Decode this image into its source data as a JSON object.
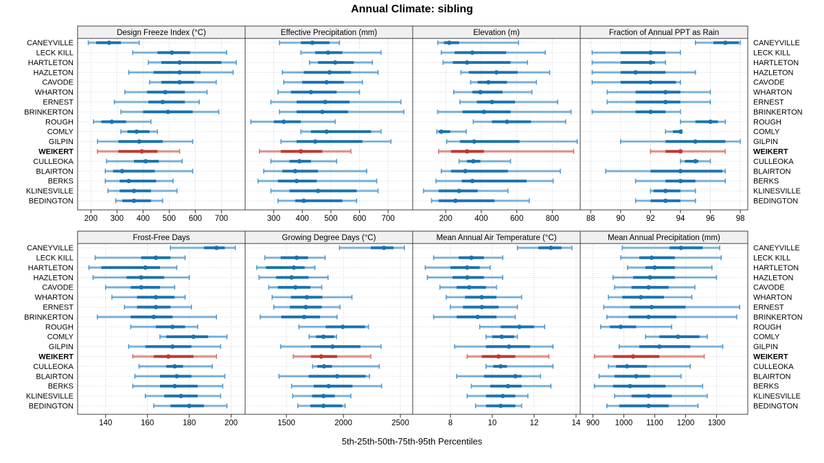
{
  "title": "Annual Climate: sibling",
  "caption": "5th-25th-50th-75th-95th Percentiles",
  "highlight_site": "WEIKERT",
  "colors": {
    "blue_dark": "#1b73af",
    "blue_mid": "#4d97cb",
    "blue_light": "#b7d4ea",
    "red_dark": "#c13830",
    "red_mid": "#d4756d",
    "red_light": "#eab4af",
    "strip_bg": "#f0f0f0",
    "panel_border": "#3c3c3c",
    "grid": "#cccccc",
    "row_grid": "#d4d4d4",
    "tick": "#333333"
  },
  "sites": [
    "CANEYVILLE",
    "LECK KILL",
    "HARTLETON",
    "HAZLETON",
    "CAVODE",
    "WHARTON",
    "ERNEST",
    "BRINKERTON",
    "ROUGH",
    "COMLY",
    "GILPIN",
    "WEIKERT",
    "CULLEOKA",
    "BLAIRTON",
    "BERKS",
    "KLINESVILLE",
    "BEDINGTON"
  ],
  "chart_data": {
    "type": "trellis-interval-dotplot",
    "percentile_levels": [
      5,
      25,
      50,
      75,
      95
    ],
    "note": "values arrays align with sites order; each entry = [p5,p25,p50,p75,p95]",
    "panels": [
      {
        "title": "Design Freeze Index (°C)",
        "grid_row": 0,
        "grid_col": 0,
        "xlim": [
          149,
          791
        ],
        "ticks": [
          200,
          300,
          400,
          500,
          600,
          700
        ],
        "values": [
          [
            190,
            220,
            270,
            315,
            385
          ],
          [
            360,
            455,
            510,
            580,
            720
          ],
          [
            420,
            470,
            540,
            700,
            757
          ],
          [
            345,
            440,
            540,
            620,
            745
          ],
          [
            425,
            470,
            540,
            595,
            680
          ],
          [
            330,
            415,
            485,
            560,
            645
          ],
          [
            290,
            420,
            475,
            560,
            615
          ],
          [
            315,
            400,
            495,
            590,
            690
          ],
          [
            210,
            240,
            280,
            335,
            430
          ],
          [
            315,
            340,
            375,
            425,
            455
          ],
          [
            225,
            305,
            385,
            475,
            590
          ],
          [
            225,
            305,
            395,
            455,
            540
          ],
          [
            260,
            365,
            410,
            460,
            550
          ],
          [
            255,
            285,
            320,
            445,
            590
          ],
          [
            255,
            310,
            345,
            450,
            515
          ],
          [
            265,
            310,
            365,
            430,
            530
          ],
          [
            295,
            320,
            365,
            430,
            475
          ]
        ]
      },
      {
        "title": "Effective Precipitation (mm)",
        "grid_row": 0,
        "grid_col": 1,
        "xlim": [
          200,
          786
        ],
        "ticks": [
          300,
          400,
          500,
          600,
          700
        ],
        "values": [
          [
            320,
            395,
            435,
            495,
            530
          ],
          [
            395,
            445,
            490,
            540,
            675
          ],
          [
            425,
            455,
            515,
            580,
            645
          ],
          [
            330,
            405,
            495,
            570,
            665
          ],
          [
            335,
            400,
            485,
            545,
            610
          ],
          [
            315,
            360,
            430,
            520,
            600
          ],
          [
            290,
            380,
            480,
            565,
            745
          ],
          [
            320,
            380,
            470,
            560,
            755
          ],
          [
            220,
            300,
            335,
            395,
            515
          ],
          [
            395,
            430,
            485,
            640,
            675
          ],
          [
            325,
            380,
            445,
            610,
            710
          ],
          [
            250,
            325,
            395,
            470,
            570
          ],
          [
            290,
            355,
            390,
            430,
            520
          ],
          [
            265,
            330,
            375,
            455,
            625
          ],
          [
            245,
            315,
            380,
            450,
            660
          ],
          [
            290,
            355,
            455,
            590,
            665
          ],
          [
            315,
            375,
            405,
            540,
            590
          ]
        ]
      },
      {
        "title": "Elevation (m)",
        "grid_row": 0,
        "grid_col": 2,
        "xlim": [
          14,
          957
        ],
        "ticks": [
          200,
          400,
          600,
          800
        ],
        "values": [
          [
            155,
            190,
            220,
            275,
            610
          ],
          [
            175,
            250,
            350,
            540,
            760
          ],
          [
            185,
            240,
            320,
            565,
            660
          ],
          [
            285,
            330,
            485,
            605,
            785
          ],
          [
            340,
            380,
            440,
            545,
            710
          ],
          [
            245,
            350,
            395,
            520,
            685
          ],
          [
            280,
            375,
            460,
            590,
            830
          ],
          [
            155,
            295,
            415,
            565,
            905
          ],
          [
            355,
            460,
            545,
            680,
            875
          ],
          [
            150,
            160,
            175,
            225,
            315
          ],
          [
            205,
            280,
            360,
            615,
            940
          ],
          [
            160,
            230,
            320,
            415,
            920
          ],
          [
            275,
            320,
            355,
            395,
            565
          ],
          [
            175,
            230,
            310,
            550,
            845
          ],
          [
            145,
            290,
            350,
            655,
            805
          ],
          [
            75,
            160,
            275,
            380,
            550
          ],
          [
            120,
            160,
            255,
            475,
            670
          ]
        ]
      },
      {
        "title": "Fraction of Annual PPT as Rain",
        "grid_row": 0,
        "grid_col": 3,
        "xlim": [
          87.3,
          98.5
        ],
        "ticks": [
          88,
          90,
          92,
          94,
          96,
          98
        ],
        "values": [
          [
            95.0,
            96.2,
            97.0,
            97.9,
            98.0
          ],
          [
            88.1,
            90.0,
            92.0,
            93.0,
            94.0
          ],
          [
            88.1,
            90.0,
            92.0,
            92.3,
            93.0
          ],
          [
            88.1,
            90.0,
            91.0,
            93.0,
            95.0
          ],
          [
            88.1,
            90.0,
            92.0,
            93.7,
            94.0
          ],
          [
            89.1,
            91.0,
            93.0,
            94.0,
            96.0
          ],
          [
            89.1,
            91.0,
            93.0,
            94.0,
            96.0
          ],
          [
            88.1,
            91.0,
            92.0,
            93.0,
            94.0
          ],
          [
            94.0,
            95.0,
            96.0,
            96.5,
            97.0
          ],
          [
            93.0,
            93.5,
            94.0,
            94.0,
            94.1
          ],
          [
            90.0,
            93.0,
            95.0,
            97.0,
            98.0
          ],
          [
            92.0,
            93.0,
            94.0,
            94.1,
            97.0
          ],
          [
            94.0,
            94.3,
            95.0,
            95.2,
            96.0
          ],
          [
            89.0,
            92.0,
            94.0,
            96.8,
            97.0
          ],
          [
            91.0,
            93.0,
            94.0,
            95.0,
            97.0
          ],
          [
            92.0,
            92.2,
            93.0,
            94.0,
            95.0
          ],
          [
            91.0,
            92.0,
            93.0,
            94.0,
            95.0
          ]
        ]
      },
      {
        "title": "Frost-Free Days",
        "grid_row": 1,
        "grid_col": 0,
        "xlim": [
          126.6,
          206.7
        ],
        "ticks": [
          140,
          160,
          180,
          200
        ],
        "values": [
          [
            171,
            187,
            193,
            197,
            202
          ],
          [
            135,
            157,
            164,
            171,
            178
          ],
          [
            132,
            138,
            159,
            166,
            174
          ],
          [
            134,
            150,
            157,
            168,
            180
          ],
          [
            140,
            152,
            157,
            166,
            173
          ],
          [
            143,
            155,
            164,
            173,
            178
          ],
          [
            149,
            155,
            164,
            171,
            181
          ],
          [
            136,
            152,
            163,
            172,
            193
          ],
          [
            152,
            164,
            172,
            178,
            184
          ],
          [
            166,
            169,
            182,
            189,
            198
          ],
          [
            151,
            159,
            172,
            181,
            195
          ],
          [
            153,
            163,
            170,
            182,
            193
          ],
          [
            156,
            169,
            173,
            177,
            191
          ],
          [
            154,
            166,
            174,
            181,
            197
          ],
          [
            153,
            166,
            173,
            184,
            196
          ],
          [
            159,
            168,
            176,
            184,
            195
          ],
          [
            163,
            171,
            180,
            187,
            198
          ]
        ]
      },
      {
        "title": "Growing Degree Days (°C)",
        "grid_row": 1,
        "grid_col": 1,
        "xlim": [
          1138,
          2608
        ],
        "ticks": [
          1500,
          2000,
          2500
        ],
        "values": [
          [
            1965,
            2240,
            2355,
            2440,
            2535
          ],
          [
            1310,
            1450,
            1590,
            1690,
            1840
          ],
          [
            1240,
            1320,
            1565,
            1660,
            1750
          ],
          [
            1260,
            1410,
            1545,
            1695,
            1865
          ],
          [
            1345,
            1425,
            1580,
            1710,
            1810
          ],
          [
            1375,
            1540,
            1680,
            1815,
            2075
          ],
          [
            1390,
            1530,
            1670,
            1810,
            1970
          ],
          [
            1270,
            1455,
            1655,
            1795,
            1945
          ],
          [
            1610,
            1845,
            1995,
            2190,
            2220
          ],
          [
            1700,
            1760,
            1825,
            1920,
            1940
          ],
          [
            1450,
            1715,
            1905,
            2150,
            2330
          ],
          [
            1560,
            1715,
            1805,
            1945,
            2240
          ],
          [
            1730,
            1770,
            1830,
            1900,
            2315
          ],
          [
            1435,
            1695,
            1945,
            2195,
            2230
          ],
          [
            1545,
            1740,
            1870,
            2080,
            2335
          ],
          [
            1555,
            1725,
            1825,
            1925,
            2065
          ],
          [
            1600,
            1710,
            1825,
            1990,
            2015
          ]
        ]
      },
      {
        "title": "Mean Annual Air Temperature (°C)",
        "grid_row": 1,
        "grid_col": 2,
        "xlim": [
          6.2,
          14.2
        ],
        "ticks": [
          8,
          10,
          12,
          14
        ],
        "values": [
          [
            11.2,
            12.2,
            12.8,
            13.3,
            13.8
          ],
          [
            7.2,
            8.4,
            9.0,
            9.6,
            10.5
          ],
          [
            6.8,
            8.0,
            8.8,
            9.4,
            9.9
          ],
          [
            6.9,
            8.1,
            8.8,
            9.6,
            10.5
          ],
          [
            7.5,
            8.3,
            8.9,
            9.7,
            10.2
          ],
          [
            7.8,
            8.7,
            9.5,
            10.2,
            11.4
          ],
          [
            8.0,
            8.6,
            9.5,
            10.3,
            11.2
          ],
          [
            7.2,
            8.3,
            9.3,
            10.2,
            11.1
          ],
          [
            9.4,
            10.4,
            11.3,
            12.0,
            12.5
          ],
          [
            9.7,
            10.0,
            10.45,
            11.05,
            11.2
          ],
          [
            8.2,
            9.7,
            10.8,
            11.8,
            12.9
          ],
          [
            8.8,
            9.5,
            10.3,
            11.1,
            12.7
          ],
          [
            9.7,
            10.05,
            10.4,
            10.7,
            12.9
          ],
          [
            8.3,
            9.6,
            11.1,
            11.4,
            12.3
          ],
          [
            9.0,
            9.9,
            10.75,
            11.4,
            12.8
          ],
          [
            8.8,
            9.7,
            10.5,
            11.1,
            11.7
          ],
          [
            9.2,
            9.7,
            10.4,
            11.1,
            11.4
          ]
        ]
      },
      {
        "title": "Mean Annual Precipitation (mm)",
        "grid_row": 1,
        "grid_col": 3,
        "xlim": [
          859,
          1401
        ],
        "ticks": [
          900,
          1000,
          1100,
          1200,
          1300
        ],
        "values": [
          [
            995,
            1148,
            1185,
            1255,
            1310
          ],
          [
            990,
            1050,
            1090,
            1165,
            1315
          ],
          [
            1012,
            1070,
            1100,
            1165,
            1285
          ],
          [
            965,
            1030,
            1085,
            1165,
            1300
          ],
          [
            970,
            1025,
            1080,
            1145,
            1230
          ],
          [
            950,
            995,
            1055,
            1130,
            1220
          ],
          [
            935,
            1020,
            1090,
            1200,
            1375
          ],
          [
            945,
            1015,
            1080,
            1170,
            1365
          ],
          [
            925,
            955,
            990,
            1040,
            1155
          ],
          [
            1070,
            1115,
            1175,
            1245,
            1270
          ],
          [
            985,
            1050,
            1115,
            1215,
            1320
          ],
          [
            905,
            965,
            1030,
            1115,
            1260
          ],
          [
            950,
            975,
            1010,
            1075,
            1215
          ],
          [
            920,
            970,
            1040,
            1085,
            1185
          ],
          [
            905,
            965,
            1020,
            1135,
            1255
          ],
          [
            970,
            1025,
            1080,
            1155,
            1270
          ],
          [
            945,
            985,
            1080,
            1145,
            1240
          ]
        ]
      }
    ]
  }
}
